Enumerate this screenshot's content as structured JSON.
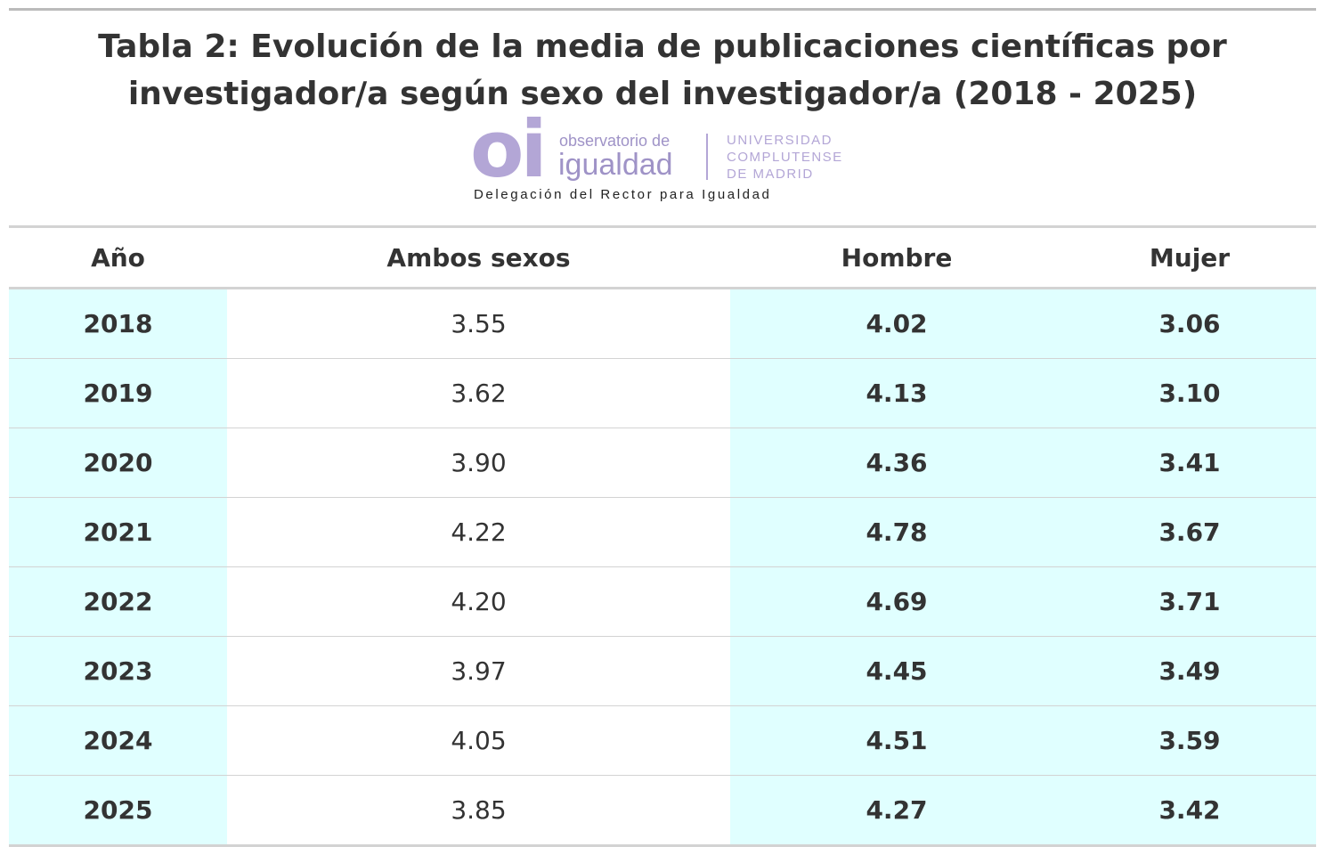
{
  "title": "Tabla 2: Evolución de la media de publicaciones científicas por investigador/a según sexo del investigador/a (2018 - 2025)",
  "logo": {
    "mark": "oi",
    "line1": "observatorio de",
    "line2": "igualdad",
    "university": [
      "UNIVERSIDAD",
      "COMPLUTENSE",
      "DE MADRID"
    ],
    "tagline": "Delegación del Rector para Igualdad"
  },
  "table": {
    "headers": [
      "Año",
      "Ambos sexos",
      "Hombre",
      "Mujer"
    ],
    "rows": [
      [
        "2018",
        "3.55",
        "4.02",
        "3.06"
      ],
      [
        "2019",
        "3.62",
        "4.13",
        "3.10"
      ],
      [
        "2020",
        "3.90",
        "4.36",
        "3.41"
      ],
      [
        "2021",
        "4.22",
        "4.78",
        "3.67"
      ],
      [
        "2022",
        "4.20",
        "4.69",
        "3.71"
      ],
      [
        "2023",
        "3.97",
        "4.45",
        "3.49"
      ],
      [
        "2024",
        "4.05",
        "4.51",
        "3.59"
      ],
      [
        "2025",
        "3.85",
        "4.27",
        "3.42"
      ]
    ]
  }
}
